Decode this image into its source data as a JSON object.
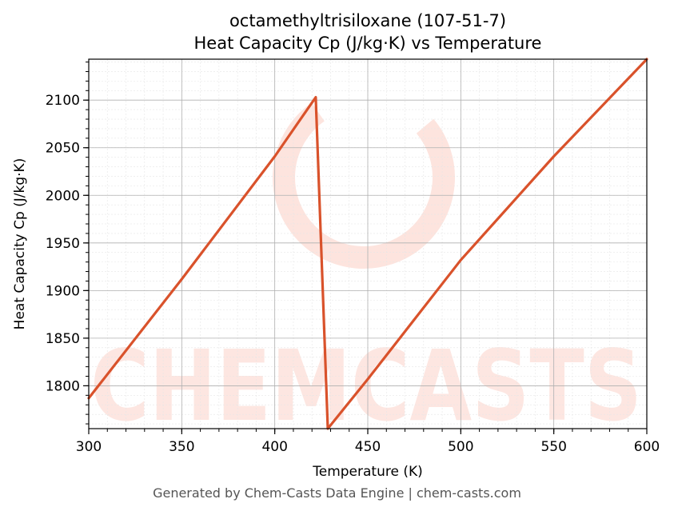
{
  "chart_data": {
    "type": "line",
    "title_line1": "octamethyltrisiloxane (107-51-7)",
    "title_line2": "Heat Capacity Cp (J/kg·K) vs Temperature",
    "xlabel": "Temperature (K)",
    "ylabel": "Heat Capacity Cp (J/kg·K)",
    "xlim": [
      300,
      600
    ],
    "ylim": [
      1755,
      2143
    ],
    "xticks": [
      300,
      350,
      400,
      450,
      500,
      550,
      600
    ],
    "yticks": [
      1800,
      1850,
      1900,
      1950,
      2000,
      2050,
      2100
    ],
    "grid": true,
    "series": [
      {
        "color": "#d9522b",
        "x": [
          300,
          350,
          400,
          422,
          428.5,
          450,
          500,
          550,
          600
        ],
        "y": [
          1787,
          1912,
          2041,
          2103,
          1755,
          1807,
          1932,
          2041,
          2143
        ]
      }
    ]
  },
  "watermark": {
    "text": "CHEMCASTS",
    "color": "#fde4de"
  },
  "footer": "Generated by Chem-Casts Data Engine | chem-casts.com"
}
